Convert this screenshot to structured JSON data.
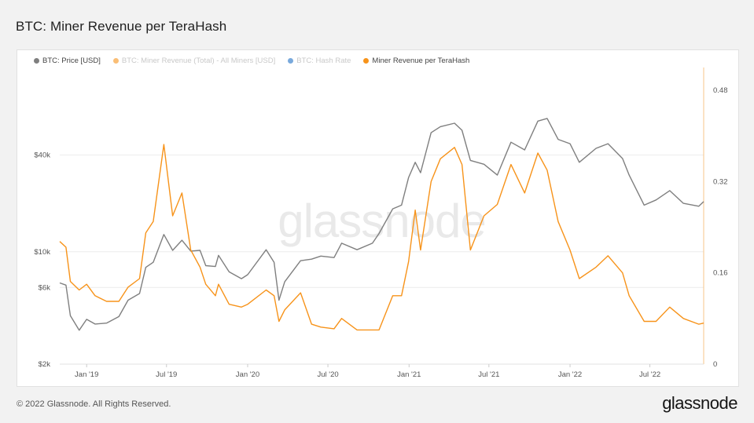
{
  "title": "BTC: Miner Revenue per TeraHash",
  "footer": {
    "copyright": "© 2022 Glassnode. All Rights Reserved.",
    "logo": "glassnode"
  },
  "watermark": "glassnode",
  "legend": [
    {
      "label": "BTC: Price [USD]",
      "color": "#7f7f7f",
      "active": true
    },
    {
      "label": "BTC: Miner Revenue (Total) - All Miners [USD]",
      "color": "#f7931a",
      "active": false
    },
    {
      "label": "BTC: Hash Rate",
      "color": "#1f6fc5",
      "active": false
    },
    {
      "label": "Miner Revenue per TeraHash",
      "color": "#f7931a",
      "active": true
    }
  ],
  "chart_data": {
    "type": "line",
    "x_range": [
      "2018-11-01",
      "2022-10-31"
    ],
    "x_ticks": [
      {
        "label": "Jan '19",
        "date": "2019-01-01"
      },
      {
        "label": "Jul '19",
        "date": "2019-07-01"
      },
      {
        "label": "Jan '20",
        "date": "2020-01-01"
      },
      {
        "label": "Jul '20",
        "date": "2020-07-01"
      },
      {
        "label": "Jan '21",
        "date": "2021-01-01"
      },
      {
        "label": "Jul '21",
        "date": "2021-07-01"
      },
      {
        "label": "Jan '22",
        "date": "2022-01-01"
      },
      {
        "label": "Jul '22",
        "date": "2022-07-01"
      }
    ],
    "y_left": {
      "scale": "log",
      "range": [
        2000,
        140000
      ],
      "ticks": [
        {
          "label": "$2k",
          "value": 2000
        },
        {
          "label": "$6k",
          "value": 6000
        },
        {
          "label": "$10k",
          "value": 10000
        },
        {
          "label": "$40k",
          "value": 40000
        }
      ]
    },
    "y_right": {
      "scale": "linear",
      "range": [
        0,
        0.52
      ],
      "ticks": [
        {
          "label": "0",
          "value": 0
        },
        {
          "label": "0.16",
          "value": 0.16
        },
        {
          "label": "0.32",
          "value": 0.32
        },
        {
          "label": "0.48",
          "value": 0.48
        }
      ]
    },
    "series": [
      {
        "name": "BTC: Price [USD]",
        "axis": "left",
        "color": "#7f7f7f",
        "points": [
          [
            "2018-11-01",
            6400
          ],
          [
            "2018-11-15",
            6200
          ],
          [
            "2018-11-25",
            4000
          ],
          [
            "2018-12-15",
            3250
          ],
          [
            "2019-01-01",
            3800
          ],
          [
            "2019-01-20",
            3550
          ],
          [
            "2019-02-15",
            3600
          ],
          [
            "2019-03-15",
            3950
          ],
          [
            "2019-04-05",
            5000
          ],
          [
            "2019-05-01",
            5500
          ],
          [
            "2019-05-15",
            8000
          ],
          [
            "2019-06-01",
            8600
          ],
          [
            "2019-06-25",
            12800
          ],
          [
            "2019-07-15",
            10200
          ],
          [
            "2019-08-05",
            11800
          ],
          [
            "2019-08-25",
            10100
          ],
          [
            "2019-09-15",
            10200
          ],
          [
            "2019-09-28",
            8200
          ],
          [
            "2019-10-20",
            8100
          ],
          [
            "2019-10-27",
            9500
          ],
          [
            "2019-11-20",
            7500
          ],
          [
            "2019-12-18",
            6800
          ],
          [
            "2020-01-01",
            7200
          ],
          [
            "2020-02-12",
            10300
          ],
          [
            "2020-03-01",
            8600
          ],
          [
            "2020-03-12",
            5000
          ],
          [
            "2020-03-25",
            6500
          ],
          [
            "2020-04-30",
            8800
          ],
          [
            "2020-05-25",
            9000
          ],
          [
            "2020-06-15",
            9400
          ],
          [
            "2020-07-15",
            9200
          ],
          [
            "2020-08-01",
            11300
          ],
          [
            "2020-09-05",
            10300
          ],
          [
            "2020-10-10",
            11300
          ],
          [
            "2020-10-25",
            13000
          ],
          [
            "2020-11-25",
            18500
          ],
          [
            "2020-12-15",
            19500
          ],
          [
            "2020-12-31",
            29000
          ],
          [
            "2021-01-15",
            36000
          ],
          [
            "2021-01-27",
            31000
          ],
          [
            "2021-02-20",
            55000
          ],
          [
            "2021-03-13",
            60000
          ],
          [
            "2021-04-14",
            63000
          ],
          [
            "2021-05-01",
            57000
          ],
          [
            "2021-05-20",
            37000
          ],
          [
            "2021-06-20",
            35000
          ],
          [
            "2021-07-20",
            30000
          ],
          [
            "2021-08-20",
            48000
          ],
          [
            "2021-09-20",
            43000
          ],
          [
            "2021-10-20",
            65000
          ],
          [
            "2021-11-10",
            67500
          ],
          [
            "2021-12-05",
            50000
          ],
          [
            "2022-01-01",
            47000
          ],
          [
            "2022-01-22",
            36000
          ],
          [
            "2022-03-01",
            44000
          ],
          [
            "2022-03-28",
            47000
          ],
          [
            "2022-04-30",
            38000
          ],
          [
            "2022-05-15",
            30000
          ],
          [
            "2022-06-18",
            19500
          ],
          [
            "2022-07-15",
            21000
          ],
          [
            "2022-08-15",
            24000
          ],
          [
            "2022-09-15",
            20000
          ],
          [
            "2022-10-20",
            19200
          ],
          [
            "2022-10-31",
            20500
          ]
        ]
      },
      {
        "name": "Miner Revenue per TeraHash",
        "axis": "right",
        "color": "#f7931a",
        "points": [
          [
            "2018-11-01",
            0.215
          ],
          [
            "2018-11-15",
            0.205
          ],
          [
            "2018-11-25",
            0.145
          ],
          [
            "2018-12-15",
            0.13
          ],
          [
            "2019-01-01",
            0.14
          ],
          [
            "2019-01-20",
            0.12
          ],
          [
            "2019-02-15",
            0.11
          ],
          [
            "2019-03-15",
            0.11
          ],
          [
            "2019-04-05",
            0.135
          ],
          [
            "2019-05-01",
            0.15
          ],
          [
            "2019-05-15",
            0.23
          ],
          [
            "2019-06-01",
            0.25
          ],
          [
            "2019-06-25",
            0.385
          ],
          [
            "2019-07-15",
            0.26
          ],
          [
            "2019-08-05",
            0.3
          ],
          [
            "2019-08-25",
            0.2
          ],
          [
            "2019-09-15",
            0.17
          ],
          [
            "2019-09-28",
            0.14
          ],
          [
            "2019-10-20",
            0.12
          ],
          [
            "2019-10-27",
            0.14
          ],
          [
            "2019-11-20",
            0.105
          ],
          [
            "2019-12-18",
            0.1
          ],
          [
            "2020-01-01",
            0.105
          ],
          [
            "2020-02-12",
            0.13
          ],
          [
            "2020-03-01",
            0.12
          ],
          [
            "2020-03-12",
            0.075
          ],
          [
            "2020-03-25",
            0.095
          ],
          [
            "2020-04-30",
            0.125
          ],
          [
            "2020-05-25",
            0.07
          ],
          [
            "2020-06-15",
            0.065
          ],
          [
            "2020-07-15",
            0.062
          ],
          [
            "2020-08-01",
            0.08
          ],
          [
            "2020-09-05",
            0.06
          ],
          [
            "2020-10-10",
            0.06
          ],
          [
            "2020-10-25",
            0.06
          ],
          [
            "2020-11-25",
            0.12
          ],
          [
            "2020-12-15",
            0.12
          ],
          [
            "2020-12-31",
            0.18
          ],
          [
            "2021-01-15",
            0.27
          ],
          [
            "2021-01-27",
            0.2
          ],
          [
            "2021-02-20",
            0.32
          ],
          [
            "2021-03-13",
            0.36
          ],
          [
            "2021-04-14",
            0.38
          ],
          [
            "2021-05-01",
            0.35
          ],
          [
            "2021-05-20",
            0.2
          ],
          [
            "2021-06-20",
            0.26
          ],
          [
            "2021-07-20",
            0.28
          ],
          [
            "2021-08-20",
            0.35
          ],
          [
            "2021-09-20",
            0.3
          ],
          [
            "2021-10-20",
            0.37
          ],
          [
            "2021-11-10",
            0.34
          ],
          [
            "2021-12-05",
            0.25
          ],
          [
            "2022-01-01",
            0.2
          ],
          [
            "2022-01-22",
            0.15
          ],
          [
            "2022-03-01",
            0.17
          ],
          [
            "2022-03-28",
            0.19
          ],
          [
            "2022-04-30",
            0.16
          ],
          [
            "2022-05-15",
            0.12
          ],
          [
            "2022-06-18",
            0.075
          ],
          [
            "2022-07-15",
            0.075
          ],
          [
            "2022-08-15",
            0.1
          ],
          [
            "2022-09-15",
            0.08
          ],
          [
            "2022-10-20",
            0.07
          ],
          [
            "2022-10-31",
            0.072
          ]
        ]
      }
    ]
  }
}
